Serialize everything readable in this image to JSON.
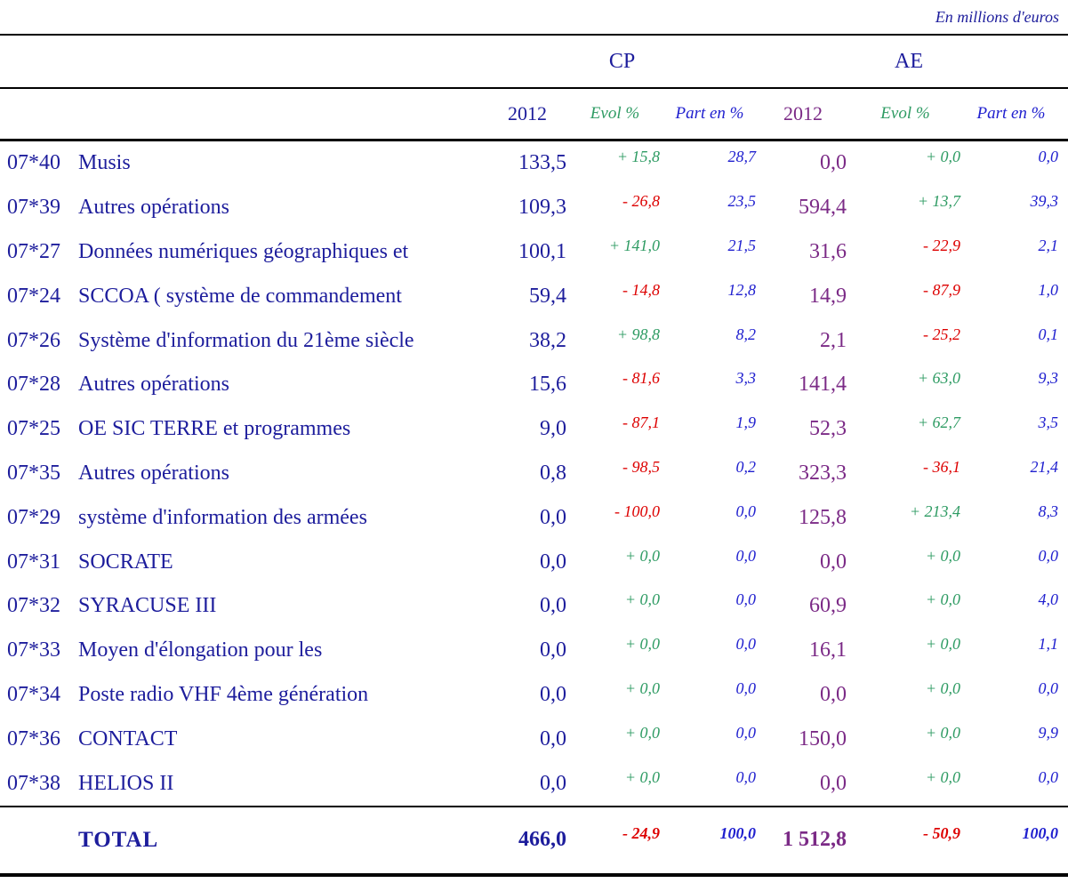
{
  "meta": {
    "units_note": "En millions d'euros"
  },
  "colors": {
    "navy": "#1d1d9c",
    "purple": "#7b2a86",
    "green": "#2e9b63",
    "red": "#dd0000",
    "blue": "#2020cf",
    "line": "#000000"
  },
  "table": {
    "groups": [
      {
        "label": "CP"
      },
      {
        "label": "AE"
      }
    ],
    "columns": {
      "year": "2012",
      "evol": "Evol %",
      "part": "Part en %"
    },
    "rows": [
      {
        "code": "07*40",
        "label": "Musis",
        "cp": {
          "v": "133,5",
          "evol": "+ 15,8",
          "part": "28,7"
        },
        "ae": {
          "v": "0,0",
          "evol": "+ 0,0",
          "part": "0,0"
        }
      },
      {
        "code": "07*39",
        "label": "Autres opérations",
        "cp": {
          "v": "109,3",
          "evol": "- 26,8",
          "part": "23,5"
        },
        "ae": {
          "v": "594,4",
          "evol": "+ 13,7",
          "part": "39,3"
        }
      },
      {
        "code": "07*27",
        "label": "Données numériques géographiques et",
        "cp": {
          "v": "100,1",
          "evol": "+ 141,0",
          "part": "21,5"
        },
        "ae": {
          "v": "31,6",
          "evol": "- 22,9",
          "part": "2,1"
        }
      },
      {
        "code": "07*24",
        "label": "SCCOA ( système de commandement",
        "cp": {
          "v": "59,4",
          "evol": "- 14,8",
          "part": "12,8"
        },
        "ae": {
          "v": "14,9",
          "evol": "- 87,9",
          "part": "1,0"
        }
      },
      {
        "code": "07*26",
        "label": "Système d'information du 21ème siècle",
        "cp": {
          "v": "38,2",
          "evol": "+ 98,8",
          "part": "8,2"
        },
        "ae": {
          "v": "2,1",
          "evol": "- 25,2",
          "part": "0,1"
        }
      },
      {
        "code": "07*28",
        "label": "Autres opérations",
        "cp": {
          "v": "15,6",
          "evol": "- 81,6",
          "part": "3,3"
        },
        "ae": {
          "v": "141,4",
          "evol": "+ 63,0",
          "part": "9,3"
        }
      },
      {
        "code": "07*25",
        "label": "OE SIC TERRE et programmes",
        "cp": {
          "v": "9,0",
          "evol": "- 87,1",
          "part": "1,9"
        },
        "ae": {
          "v": "52,3",
          "evol": "+ 62,7",
          "part": "3,5"
        }
      },
      {
        "code": "07*35",
        "label": "Autres opérations",
        "cp": {
          "v": "0,8",
          "evol": "- 98,5",
          "part": "0,2"
        },
        "ae": {
          "v": "323,3",
          "evol": "- 36,1",
          "part": "21,4"
        }
      },
      {
        "code": "07*29",
        "label": "système d'information des armées",
        "cp": {
          "v": "0,0",
          "evol": "- 100,0",
          "part": "0,0"
        },
        "ae": {
          "v": "125,8",
          "evol": "+ 213,4",
          "part": "8,3"
        }
      },
      {
        "code": "07*31",
        "label": "SOCRATE",
        "cp": {
          "v": "0,0",
          "evol": "+ 0,0",
          "part": "0,0"
        },
        "ae": {
          "v": "0,0",
          "evol": "+ 0,0",
          "part": "0,0"
        }
      },
      {
        "code": "07*32",
        "label": "SYRACUSE III",
        "cp": {
          "v": "0,0",
          "evol": "+ 0,0",
          "part": "0,0"
        },
        "ae": {
          "v": "60,9",
          "evol": "+ 0,0",
          "part": "4,0"
        }
      },
      {
        "code": "07*33",
        "label": "Moyen d'élongation pour les",
        "cp": {
          "v": "0,0",
          "evol": "+ 0,0",
          "part": "0,0"
        },
        "ae": {
          "v": "16,1",
          "evol": "+ 0,0",
          "part": "1,1"
        }
      },
      {
        "code": "07*34",
        "label": "Poste radio VHF 4ème génération",
        "cp": {
          "v": "0,0",
          "evol": "+ 0,0",
          "part": "0,0"
        },
        "ae": {
          "v": "0,0",
          "evol": "+ 0,0",
          "part": "0,0"
        }
      },
      {
        "code": "07*36",
        "label": "CONTACT",
        "cp": {
          "v": "0,0",
          "evol": "+ 0,0",
          "part": "0,0"
        },
        "ae": {
          "v": "150,0",
          "evol": "+ 0,0",
          "part": "9,9"
        }
      },
      {
        "code": "07*38",
        "label": "HELIOS II",
        "cp": {
          "v": "0,0",
          "evol": "+ 0,0",
          "part": "0,0"
        },
        "ae": {
          "v": "0,0",
          "evol": "+ 0,0",
          "part": "0,0"
        }
      }
    ],
    "total": {
      "label": "TOTAL",
      "cp": {
        "v": "466,0",
        "evol": "- 24,9",
        "part": "100,0"
      },
      "ae": {
        "v": "1 512,8",
        "evol": "- 50,9",
        "part": "100,0"
      }
    }
  }
}
